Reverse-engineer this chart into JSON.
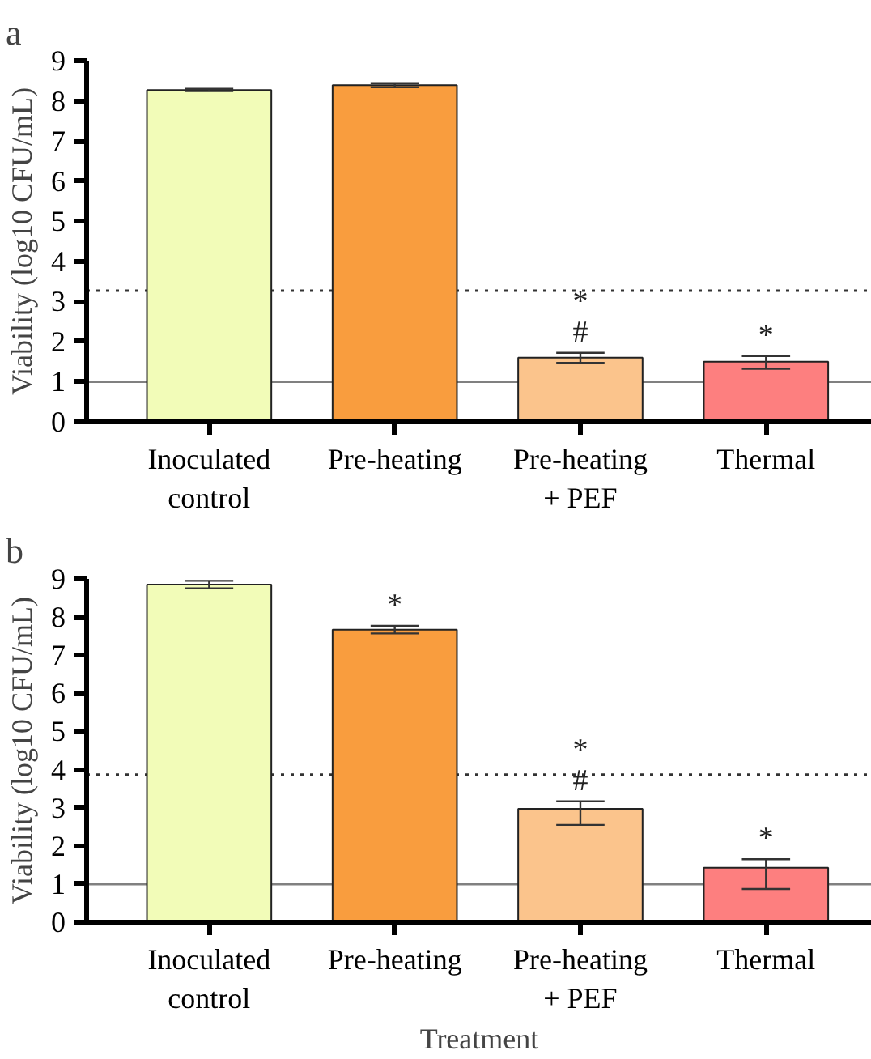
{
  "chart_data": [
    {
      "type": "bar",
      "title": "a",
      "ylabel": "Viability (log10 CFU/mL)",
      "categories": [
        "Inoculated\ncontrol",
        "Pre-heating",
        "Pre-heating\n+ PEF",
        "Thermal"
      ],
      "values": [
        8.27,
        8.39,
        1.6,
        1.5
      ],
      "colors": [
        "#f2fcb8",
        "#f99d3e",
        "#fbc48c",
        "#fd7f7f"
      ],
      "errors": [
        0.03,
        0.05,
        [
          1.47,
          1.72
        ],
        [
          1.32,
          1.64
        ]
      ],
      "ylim": [
        0,
        9
      ],
      "yticks": [
        0,
        1,
        2,
        3,
        4,
        5,
        6,
        7,
        8,
        9
      ],
      "grid": false,
      "ref_lines": [
        {
          "axis": "y",
          "value": 1,
          "color": "#808080",
          "line_style": "solid"
        },
        {
          "axis": "y",
          "value": 3.27,
          "color": "#333333",
          "line_style": "dotted"
        }
      ],
      "annotations": [
        {
          "text": "#",
          "x": "Pre-heating\n+ PEF",
          "y": 1.6
        },
        {
          "text": "*",
          "x": "Pre-heating\n+ PEF",
          "y": 1.6
        },
        {
          "text": "*",
          "x": "Thermal",
          "y": 1.5
        }
      ]
    },
    {
      "type": "bar",
      "title": "b",
      "xlabel": "Treatment",
      "ylabel": "Viability (log10 CFU/mL)",
      "categories": [
        "Inoculated\ncontrol",
        "Pre-heating",
        "Pre-heating\n+ PEF",
        "Thermal"
      ],
      "values": [
        8.85,
        7.67,
        2.97,
        1.43
      ],
      "colors": [
        "#f2fcb8",
        "#f99d3e",
        "#fbc48c",
        "#fd7f7f"
      ],
      "errors": [
        0.1,
        0.1,
        [
          2.55,
          3.17
        ],
        [
          0.87,
          1.65
        ]
      ],
      "ylim": [
        0,
        9
      ],
      "yticks": [
        0,
        1,
        2,
        3,
        4,
        5,
        6,
        7,
        8,
        9
      ],
      "grid": false,
      "ref_lines": [
        {
          "axis": "y",
          "value": 1,
          "color": "#808080",
          "line_style": "solid"
        },
        {
          "axis": "y",
          "value": 3.87,
          "color": "#333333",
          "line_style": "dotted"
        }
      ],
      "annotations": [
        {
          "text": "*",
          "x": "Pre-heating",
          "y": 7.67
        },
        {
          "text": "#",
          "x": "Pre-heating\n+ PEF",
          "y": 2.97
        },
        {
          "text": "*",
          "x": "Pre-heating\n+ PEF",
          "y": 2.97
        },
        {
          "text": "*",
          "x": "Thermal",
          "y": 1.43
        }
      ]
    }
  ]
}
